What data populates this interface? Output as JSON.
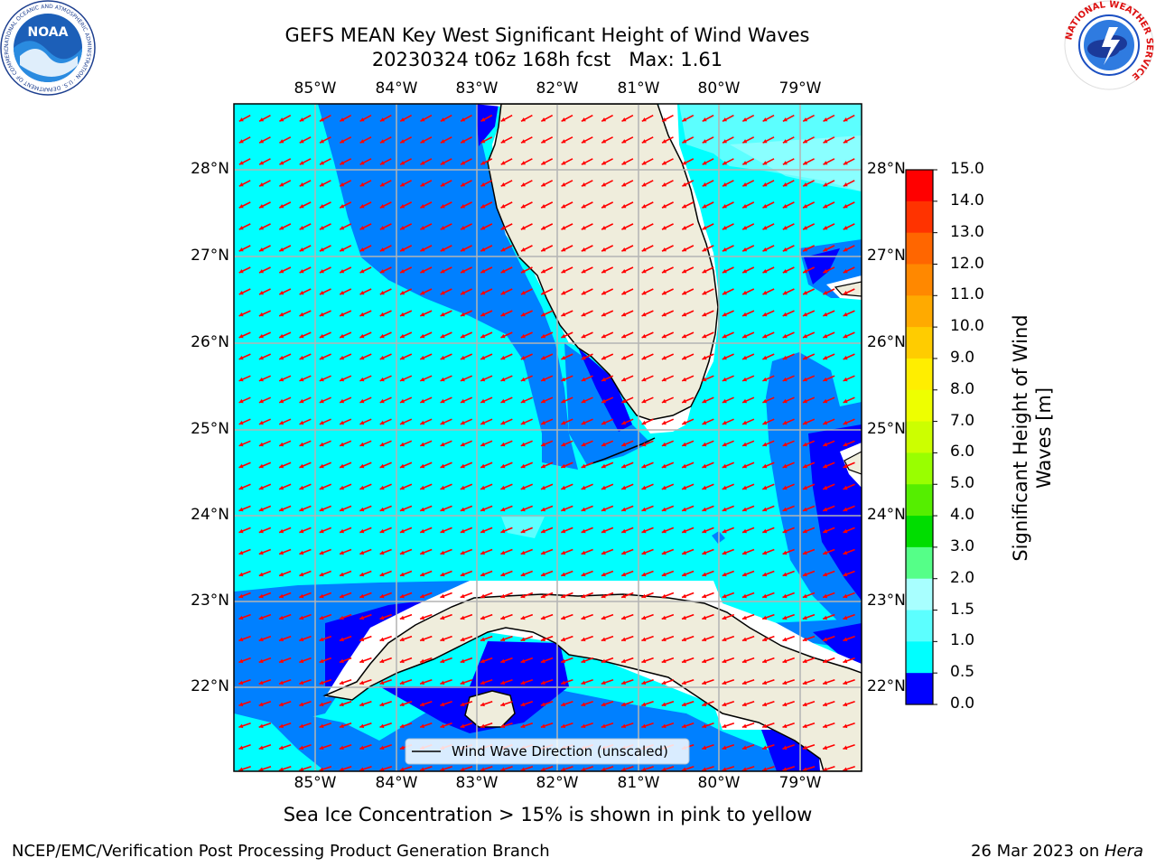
{
  "title": {
    "line1": "GEFS MEAN Key West Significant Height of Wind Waves",
    "line2": "20230324 t06z 168h fcst   Max: 1.61"
  },
  "map": {
    "lon_labels": [
      "85°W",
      "84°W",
      "83°W",
      "82°W",
      "81°W",
      "80°W",
      "79°W"
    ],
    "lat_labels": [
      "28°N",
      "27°N",
      "26°N",
      "25°N",
      "24°N",
      "23°N",
      "22°N"
    ],
    "legend_label": "Wind Wave Direction (unscaled)",
    "colors": {
      "land": "#efeddc",
      "level_0": "#0000ff",
      "level_05": "#0080ff",
      "level_1": "#00ffff",
      "level_15": "#5cffff",
      "level_2": "#a8ffff",
      "arrow": "#ff0000"
    }
  },
  "colorbar": {
    "label_line1": "Significant Height of Wind",
    "label_line2": "Waves [m]",
    "ticks": [
      "15.0",
      "14.0",
      "13.0",
      "12.0",
      "11.0",
      "10.0",
      "9.0",
      "8.0",
      "7.0",
      "6.0",
      "5.0",
      "4.0",
      "3.0",
      "2.0",
      "1.5",
      "1.0",
      "0.5",
      "0.0"
    ],
    "colors": [
      "#ff0000",
      "#ff3300",
      "#ff6600",
      "#ff8800",
      "#ffaa00",
      "#ffcc00",
      "#ffee00",
      "#eeff00",
      "#ccff00",
      "#99ff00",
      "#55ee00",
      "#00dd00",
      "#55ff88",
      "#a8ffff",
      "#5cffff",
      "#00ffff",
      "#0080ff",
      "#0000ff"
    ]
  },
  "notes": {
    "sea_ice": "Sea Ice Concentration > 15% is shown in pink to yellow"
  },
  "footer": {
    "left": "NCEP/EMC/Verification Post Processing Product Generation Branch",
    "date": "26 Mar 2023 on ",
    "host": "Hera"
  },
  "logos": {
    "noaa_text": "NOAA",
    "noaa_ring_text": "NATIONAL OCEANIC AND ATMOSPHERIC ADMINISTRATION · U.S. DEPARTMENT OF COMMERCE ·",
    "nws_ring_text": "NATIONAL WEATHER SERVICE"
  }
}
